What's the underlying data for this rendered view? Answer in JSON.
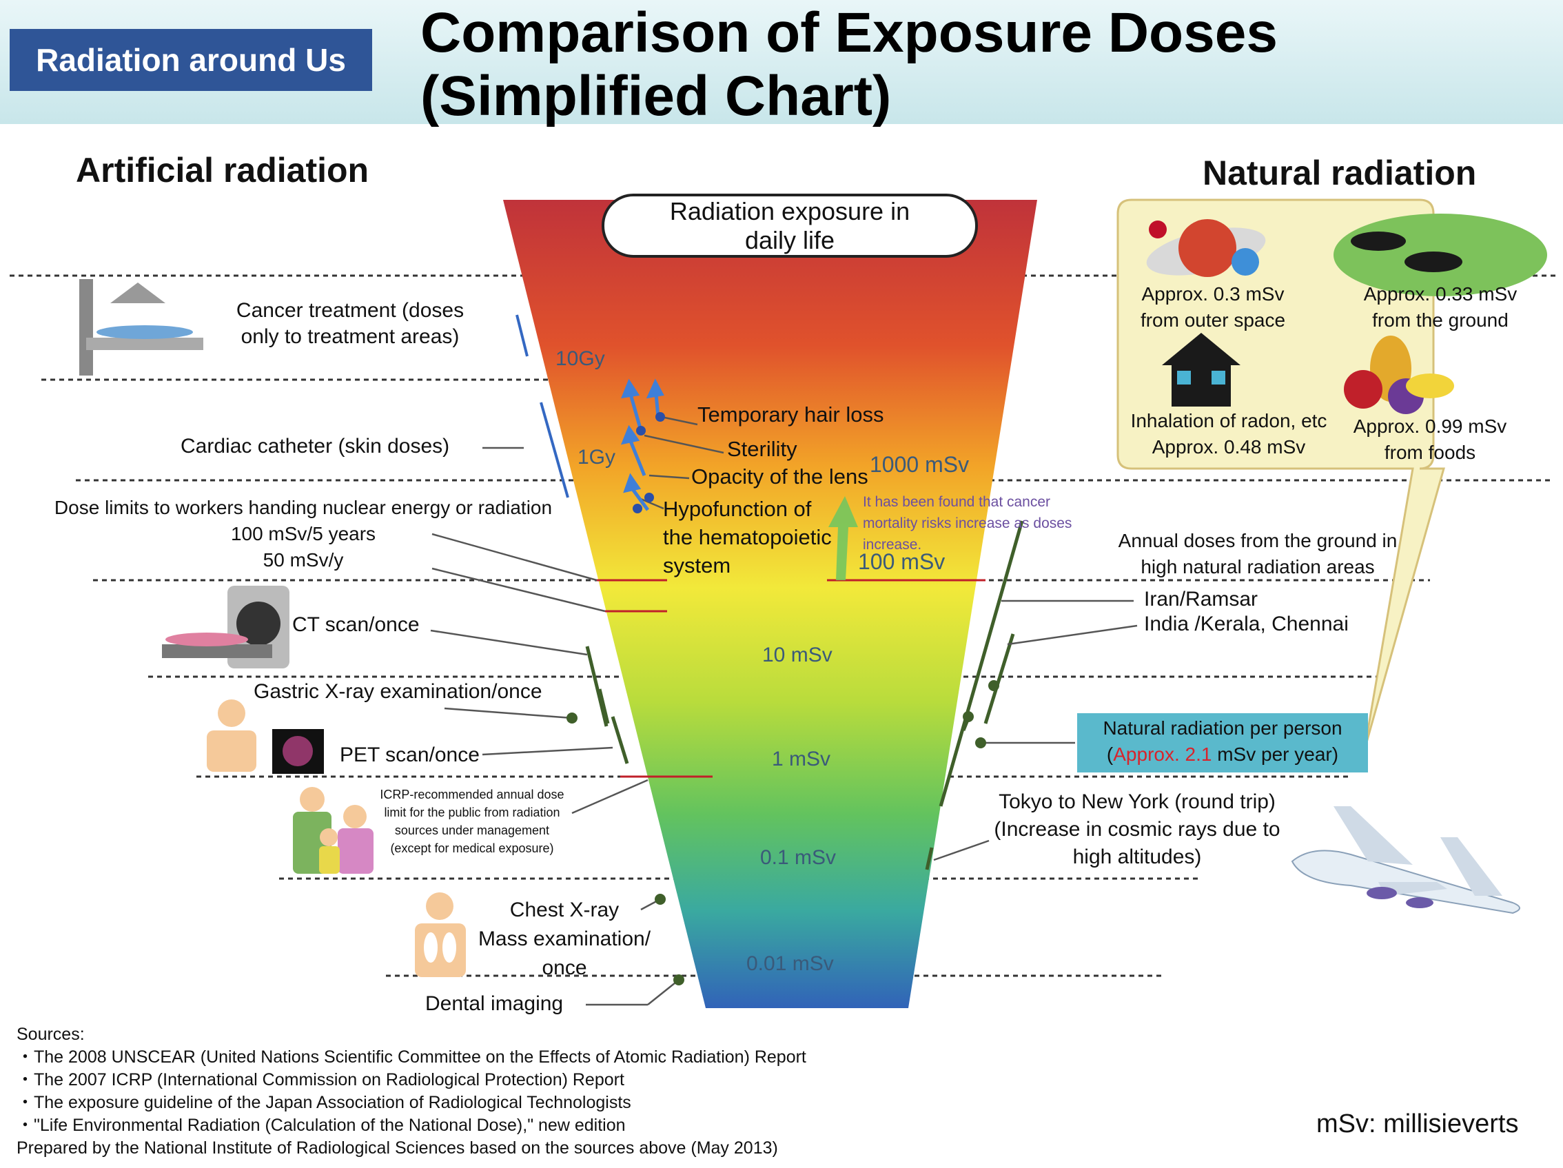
{
  "header": {
    "badge": "Radiation around Us",
    "title_line1": "Comparison of Exposure Doses",
    "title_line2": "(Simplified Chart)"
  },
  "sections": {
    "artificial": "Artificial radiation",
    "natural": "Natural radiation"
  },
  "funnel": {
    "label_line1": "Radiation exposure in",
    "label_line2": "daily life",
    "scale_labels": [
      "10Gy",
      "1Gy",
      "1000 mSv",
      "100 mSv",
      "10 mSv",
      "1 mSv",
      "0.1 mSv",
      "0.01 mSv"
    ],
    "colors": [
      "#c0333a",
      "#e0522c",
      "#f2a428",
      "#f2e93a",
      "#b9dc3c",
      "#63c35e",
      "#3aa9a0",
      "#3163b8"
    ]
  },
  "effects": {
    "hair_loss": "Temporary hair loss",
    "sterility": "Sterility",
    "lens": "Opacity of the lens",
    "hematopoietic_1": "Hypofunction of",
    "hematopoietic_2": "the hematopoietic",
    "hematopoietic_3": "system",
    "cancer_note_1": "It has been found that cancer",
    "cancer_note_2": "mortality risks increase as doses",
    "cancer_note_3": "increase."
  },
  "artificial": {
    "cancer_treatment_1": "Cancer treatment (doses",
    "cancer_treatment_2": "only to treatment areas)",
    "cardiac": "Cardiac catheter (skin doses)",
    "worker_limits_1": "Dose limits to workers handing nuclear energy or radiation",
    "worker_limits_2": "100 mSv/5 years",
    "worker_limits_3": "50 mSv/y",
    "ct": "CT scan/once",
    "gastric": "Gastric X-ray examination/once",
    "pet": "PET scan/once",
    "icrp_1": "ICRP-recommended annual dose",
    "icrp_2": "limit for the public from radiation",
    "icrp_3": "sources under management",
    "icrp_4": "(except for medical exposure)",
    "chest_1": "Chest X-ray",
    "chest_2": "Mass examination/",
    "chest_3": "once",
    "dental": "Dental imaging"
  },
  "natural": {
    "outer_space_1": "Approx. 0.3 mSv",
    "outer_space_2": "from outer space",
    "ground_1": "Approx. 0.33 mSv",
    "ground_2": "from the ground",
    "radon_1": "Inhalation of radon, etc",
    "radon_2": "Approx. 0.48 mSv",
    "foods_1": "Approx. 0.99 mSv",
    "foods_2": "from foods",
    "high_areas_1": "Annual doses from the ground in",
    "high_areas_2": "high natural radiation areas",
    "iran": "Iran/Ramsar",
    "india": "India /Kerala, Chennai",
    "per_person_1": "Natural radiation per person",
    "per_person_open": "(",
    "per_person_value": "Approx. 2.1",
    "per_person_rest": " mSv per year)",
    "flight_1": "Tokyo to New York (round trip)",
    "flight_2": "(Increase in cosmic rays due to",
    "flight_3": "high altitudes)"
  },
  "sources": {
    "heading": "Sources:",
    "items": [
      "・The 2008 UNSCEAR (United Nations Scientific Committee on the Effects of Atomic Radiation) Report",
      "・The 2007 ICRP (International Commission on Radiological Protection) Report",
      "・The exposure guideline of the Japan Association of Radiological Technologists",
      "・\"Life Environmental Radiation (Calculation of the National Dose),\" new edition"
    ],
    "prepared": "Prepared by the National Institute of Radiological Sciences based on the sources above (May 2013)"
  },
  "unit_note": "mSv: millisieverts"
}
